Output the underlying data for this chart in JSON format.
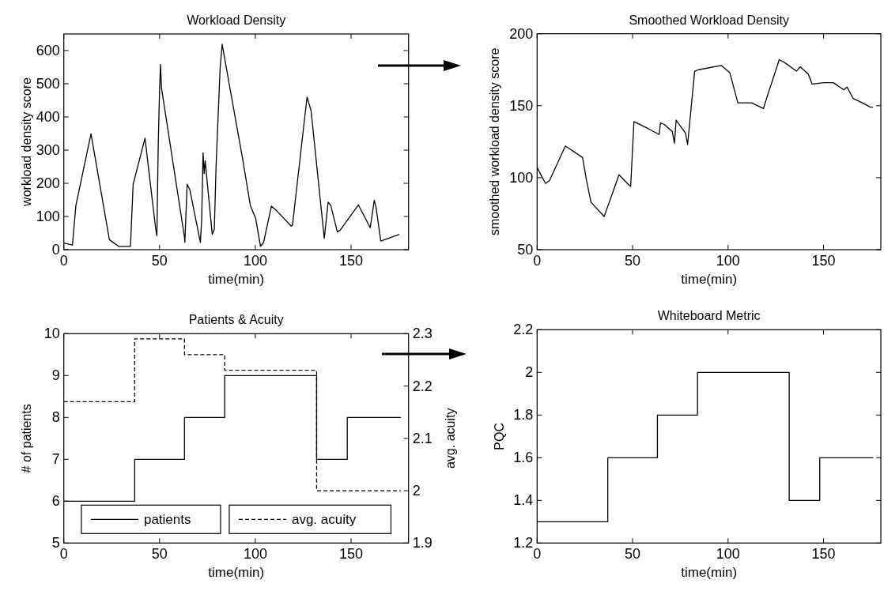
{
  "chart_data": [
    {
      "type": "line",
      "title": "Workload Density",
      "xlabel": "time(min)",
      "ylabel": "workload density score",
      "xlim": [
        0,
        180
      ],
      "ylim": [
        0,
        650
      ],
      "xticks": [
        0,
        50,
        100,
        150
      ],
      "yticks": [
        0,
        100,
        200,
        300,
        400,
        500,
        600
      ],
      "series": [
        {
          "color": "#000000",
          "x": [
            0,
            4.5,
            6.3,
            14.2,
            23.8,
            28.6,
            34.8,
            36.2,
            42.4,
            47.9,
            48.6,
            49.3,
            50,
            50.5,
            51,
            63,
            63.2,
            64.4,
            65.8,
            71.3,
            72,
            72.7,
            73.3,
            73.8,
            77.5,
            78.6,
            79.5,
            81.6,
            82.7,
            86.4,
            93.3,
            97.4,
            100.2,
            102.7,
            104.3,
            108.4,
            111.2,
            118.8,
            119.4,
            127,
            129.1,
            136,
            138,
            139.4,
            142.8,
            144.2,
            153.8,
            160,
            162.1,
            163,
            165.5,
            175.2
          ],
          "values": [
            20,
            14,
            133,
            349,
            30,
            10,
            10,
            197,
            336,
            66,
            42,
            316,
            483,
            558,
            487,
            38,
            22,
            197,
            181,
            22,
            90,
            292,
            229,
            268,
            46,
            62,
            252,
            546,
            619,
            498,
            276,
            133,
            94,
            10,
            22,
            131,
            117,
            71,
            74,
            460,
            419,
            34,
            143,
            133,
            54,
            58,
            135,
            66,
            149,
            129,
            26,
            46
          ]
        }
      ]
    },
    {
      "type": "line",
      "title": "Smoothed Workload Density",
      "xlabel": "time(min)",
      "ylabel": "smoothed workload density score",
      "xlim": [
        0,
        180
      ],
      "ylim": [
        50,
        200
      ],
      "xticks": [
        0,
        50,
        100,
        150
      ],
      "yticks": [
        50,
        100,
        150,
        200
      ],
      "series": [
        {
          "color": "#000000",
          "x": [
            0,
            4.4,
            6.5,
            14.8,
            23.8,
            25.9,
            28.2,
            35.1,
            42.9,
            48,
            49,
            50.7,
            58.3,
            63.9,
            64.6,
            66.6,
            70.8,
            71.9,
            72.8,
            77.7,
            78.8,
            82.5,
            84.6,
            96.4,
            98.2,
            100.9,
            105.1,
            108.8,
            112.3,
            118.5,
            119.9,
            126.8,
            129.6,
            135.8,
            137.8,
            142,
            144,
            150.3,
            155.1,
            160.6,
            162.3,
            165.5,
            170.3,
            174.5,
            175.9
          ],
          "values": [
            107,
            96,
            98,
            122,
            114,
            98,
            83,
            73,
            102,
            95,
            94,
            139,
            134,
            130,
            138,
            137,
            132,
            124,
            140,
            131,
            123,
            174,
            175,
            178,
            176,
            173,
            152,
            152,
            152,
            148,
            154,
            182,
            180,
            174,
            177,
            172,
            165,
            166,
            166,
            161,
            163,
            155,
            152,
            149,
            149
          ]
        }
      ]
    },
    {
      "type": "step",
      "title": "Patients & Acuity",
      "xlabel": "time(min)",
      "ylabel": "# of patients",
      "y2label": "avg. acuity",
      "xlim": [
        0,
        180
      ],
      "ylim": [
        5,
        10
      ],
      "y2lim": [
        1.9,
        2.3
      ],
      "xticks": [
        0,
        50,
        100,
        150
      ],
      "yticks": [
        5,
        6,
        7,
        8,
        9,
        10
      ],
      "y2ticks": [
        1.9,
        2,
        2.1,
        2.2,
        2.3
      ],
      "legend": "bottom",
      "series": [
        {
          "name": "patients",
          "color": "#000000",
          "line_style": "solid",
          "x": [
            0,
            37,
            63,
            84,
            132,
            148,
            176
          ],
          "values": [
            6,
            7,
            8,
            9,
            7,
            8,
            8
          ]
        },
        {
          "name": "avg. acuity",
          "color": "#000000",
          "line_style": "dashed",
          "axis": "y2",
          "x": [
            0,
            37,
            63,
            84,
            132,
            176
          ],
          "values": [
            2.17,
            2.29,
            2.26,
            2.23,
            2.0,
            2.0
          ]
        }
      ]
    },
    {
      "type": "step",
      "title": "Whiteboard Metric",
      "xlabel": "time(min)",
      "ylabel": "PQC",
      "xlim": [
        0,
        180
      ],
      "ylim": [
        1.2,
        2.2
      ],
      "xticks": [
        0,
        50,
        100,
        150
      ],
      "yticks": [
        1.2,
        1.4,
        1.6,
        1.8,
        2,
        2.2
      ],
      "series": [
        {
          "color": "#000000",
          "x": [
            0,
            37,
            63,
            84,
            132,
            148,
            176
          ],
          "values": [
            1.3,
            1.6,
            1.8,
            2.0,
            1.4,
            1.6,
            1.6
          ]
        }
      ]
    }
  ]
}
